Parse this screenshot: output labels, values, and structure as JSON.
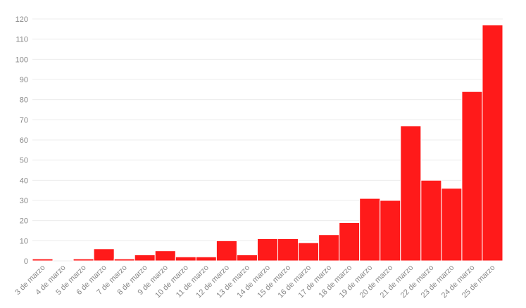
{
  "chart_data": {
    "type": "bar",
    "categories": [
      "3 de marzo",
      "4 de marzo",
      "5 de marzo",
      "6 de marzo",
      "7 de marzo",
      "8 de marzo",
      "9 de marzo",
      "10 de marzo",
      "11 de marzo",
      "12 de marzo",
      "13 de marzo",
      "14 de marzo",
      "15 de marzo",
      "16 de marzo",
      "17 de marzo",
      "18 de marzo",
      "19 de marzo",
      "20 de marzo",
      "21 de marzo",
      "22 de marzo",
      "23 de marzo",
      "24 de marzo",
      "25 de marzo"
    ],
    "values": [
      1,
      0,
      1,
      6,
      1,
      3,
      5,
      2,
      2,
      10,
      3,
      11,
      11,
      9,
      13,
      19,
      31,
      30,
      67,
      40,
      36,
      84,
      117
    ],
    "color": "#ff1a1a",
    "ylim": [
      0,
      120
    ],
    "yticks": [
      0,
      10,
      20,
      30,
      40,
      50,
      60,
      70,
      80,
      90,
      100,
      110,
      120
    ],
    "grid": true
  }
}
